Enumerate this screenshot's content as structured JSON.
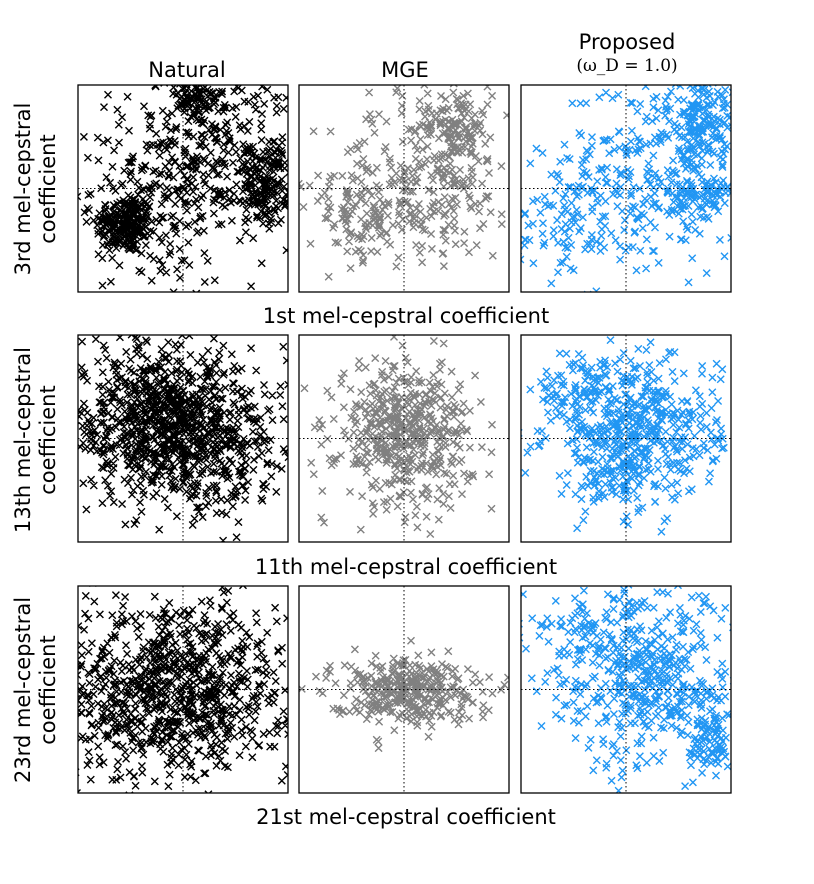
{
  "chart_data": {
    "type": "scatter",
    "title": "",
    "columns": [
      {
        "key": "natural",
        "title": "Natural",
        "subtitle": "",
        "color": "#000000"
      },
      {
        "key": "mge",
        "title": "MGE",
        "subtitle": "",
        "color": "#808080"
      },
      {
        "key": "proposed",
        "title": "Proposed",
        "subtitle": "(ω_D = 1.0)",
        "color": "#2196f3"
      }
    ],
    "rows": [
      {
        "xlabel": "1st mel-cepstral coefficient",
        "ylabel_line1": "3rd mel-cepstral",
        "ylabel_line2": "coefficient"
      },
      {
        "xlabel": "11th mel-cepstral coefficient",
        "ylabel_line1": "13th mel-cepstral",
        "ylabel_line2": "coefficient"
      },
      {
        "xlabel": "21st mel-cepstral coefficient",
        "ylabel_line1": "23rd mel-cepstral",
        "ylabel_line2": "coefficient"
      }
    ],
    "axis_range": {
      "x": [
        -1,
        1
      ],
      "y": [
        -1,
        1
      ]
    },
    "grid": "zero lines (dotted)",
    "ticks": "none",
    "marker": "x",
    "panels": [
      [
        {
          "clusters": [
            [
              -0.55,
              -0.35,
              0.14,
              0.14,
              220
            ],
            [
              0.3,
              0.35,
              0.38,
              0.45,
              300
            ],
            [
              0.8,
              0.05,
              0.1,
              0.2,
              150
            ],
            [
              0.1,
              0.85,
              0.15,
              0.12,
              80
            ],
            [
              -0.3,
              -0.1,
              0.4,
              0.5,
              180
            ]
          ]
        },
        {
          "clusters": [
            [
              0.2,
              0.1,
              0.45,
              0.4,
              260
            ],
            [
              0.5,
              0.6,
              0.15,
              0.25,
              120
            ],
            [
              -0.4,
              -0.3,
              0.25,
              0.2,
              100
            ]
          ]
        },
        {
          "clusters": [
            [
              0.3,
              0.2,
              0.5,
              0.45,
              280
            ],
            [
              0.7,
              0.7,
              0.15,
              0.2,
              150
            ],
            [
              0.7,
              -0.1,
              0.15,
              0.15,
              80
            ],
            [
              -0.4,
              -0.3,
              0.4,
              0.25,
              120
            ]
          ]
        }
      ],
      [
        {
          "clusters": [
            [
              -0.1,
              0.1,
              0.55,
              0.35,
              900
            ],
            [
              -0.4,
              0.5,
              0.25,
              0.25,
              80
            ],
            [
              0.4,
              -0.3,
              0.3,
              0.25,
              80
            ]
          ]
        },
        {
          "clusters": [
            [
              0.0,
              0.05,
              0.32,
              0.35,
              500
            ]
          ]
        },
        {
          "clusters": [
            [
              0.1,
              0.1,
              0.4,
              0.35,
              500
            ],
            [
              -0.5,
              0.45,
              0.2,
              0.2,
              60
            ],
            [
              -0.1,
              -0.3,
              0.2,
              0.2,
              80
            ]
          ]
        }
      ],
      [
        {
          "clusters": [
            [
              -0.05,
              0.05,
              0.55,
              0.45,
              800
            ],
            [
              -0.3,
              -0.3,
              0.4,
              0.3,
              120
            ]
          ]
        },
        {
          "clusters": [
            [
              0.0,
              0.0,
              0.35,
              0.16,
              350
            ]
          ]
        },
        {
          "clusters": [
            [
              0.1,
              0.1,
              0.45,
              0.45,
              350
            ],
            [
              0.8,
              -0.5,
              0.1,
              0.15,
              80
            ],
            [
              0.5,
              0.0,
              0.25,
              0.25,
              100
            ],
            [
              -0.2,
              0.5,
              0.4,
              0.25,
              100
            ]
          ]
        }
      ]
    ]
  }
}
